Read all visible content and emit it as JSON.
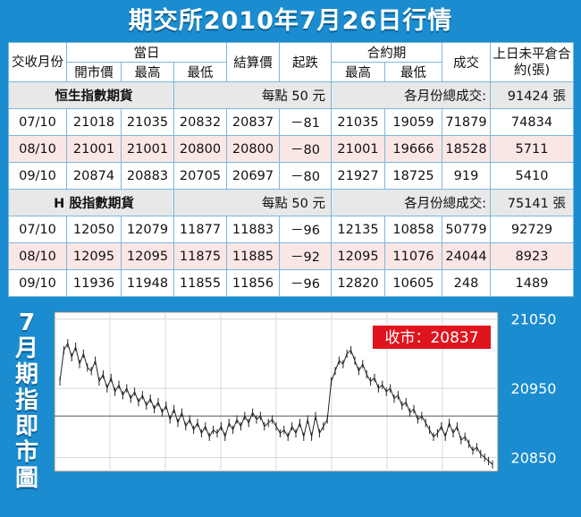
{
  "title": "期交所2010年7月26日行情",
  "table": {
    "headers": {
      "contract_month": "交收月份",
      "today": "當日",
      "open": "開市價",
      "high": "最高",
      "low": "最低",
      "settle": "結算價",
      "change": "起跌",
      "lifetime": "合約期",
      "life_high": "最高",
      "life_low": "最低",
      "volume": "成交",
      "oi": "上日未平倉合約(張)"
    },
    "sections": [
      {
        "name": "恒生指數期貨",
        "unit": "每點 50 元",
        "total_label": "各月份總成交:",
        "total_value": "91424 張",
        "rows": [
          {
            "month": "07/10",
            "open": "21018",
            "high": "21035",
            "low": "20832",
            "settle": "20837",
            "change": "－81",
            "life_high": "21035",
            "life_low": "19059",
            "volume": "71879",
            "oi": "74834"
          },
          {
            "month": "08/10",
            "open": "21001",
            "high": "21001",
            "low": "20800",
            "settle": "20800",
            "change": "－80",
            "life_high": "21001",
            "life_low": "19666",
            "volume": "18528",
            "oi": "5711"
          },
          {
            "month": "09/10",
            "open": "20874",
            "high": "20883",
            "low": "20705",
            "settle": "20697",
            "change": "－80",
            "life_high": "21927",
            "life_low": "18725",
            "volume": "919",
            "oi": "5410"
          }
        ]
      },
      {
        "name": "H 股指數期貨",
        "unit": "每點 50 元",
        "total_label": "各月份總成交:",
        "total_value": "75141 張",
        "rows": [
          {
            "month": "07/10",
            "open": "12050",
            "high": "12079",
            "low": "11877",
            "settle": "11883",
            "change": "－96",
            "life_high": "12135",
            "life_low": "10858",
            "volume": "50779",
            "oi": "92729"
          },
          {
            "month": "08/10",
            "open": "12095",
            "high": "12095",
            "low": "11875",
            "settle": "11885",
            "change": "－92",
            "life_high": "12095",
            "life_low": "11076",
            "volume": "24044",
            "oi": "8923"
          },
          {
            "month": "09/10",
            "open": "11936",
            "high": "11948",
            "low": "11855",
            "settle": "11856",
            "change": "－96",
            "life_high": "12820",
            "life_low": "10605",
            "volume": "248",
            "oi": "1489"
          }
        ]
      }
    ]
  },
  "chart_data": {
    "type": "line",
    "side_title": "7月期指即市圖",
    "close_label": "收市：20837",
    "yticks": [
      21050,
      20950,
      20850
    ],
    "ylim": [
      20830,
      21060
    ],
    "reference_line": 20910,
    "grid": true,
    "colors": {
      "price": "#222222",
      "close_box": "#e0141e"
    },
    "values": [
      20960,
      21005,
      21015,
      20995,
      21010,
      20985,
      21000,
      20980,
      20975,
      20990,
      20960,
      20970,
      20950,
      20965,
      20945,
      20955,
      20940,
      20950,
      20935,
      20945,
      20930,
      20940,
      20925,
      20935,
      20920,
      20930,
      20915,
      20925,
      20905,
      20920,
      20900,
      20915,
      20895,
      20905,
      20890,
      20900,
      20885,
      20895,
      20880,
      20890,
      20885,
      20895,
      20880,
      20900,
      20890,
      20905,
      20895,
      20910,
      20900,
      20915,
      20905,
      20910,
      20895,
      20900,
      20905,
      20895,
      20885,
      20890,
      20880,
      20895,
      20885,
      20900,
      20880,
      20905,
      20880,
      20910,
      20885,
      20895,
      20905,
      20960,
      20975,
      20990,
      20985,
      21000,
      21005,
      20990,
      20975,
      20985,
      20970,
      20960,
      20965,
      20950,
      20955,
      20945,
      20950,
      20935,
      20940,
      20925,
      20930,
      20915,
      20920,
      20905,
      20910,
      20900,
      20890,
      20880,
      20885,
      20895,
      20880,
      20900,
      20885,
      20895,
      20875,
      20880,
      20870,
      20860,
      20865,
      20855,
      20850,
      20845,
      20840
    ]
  }
}
